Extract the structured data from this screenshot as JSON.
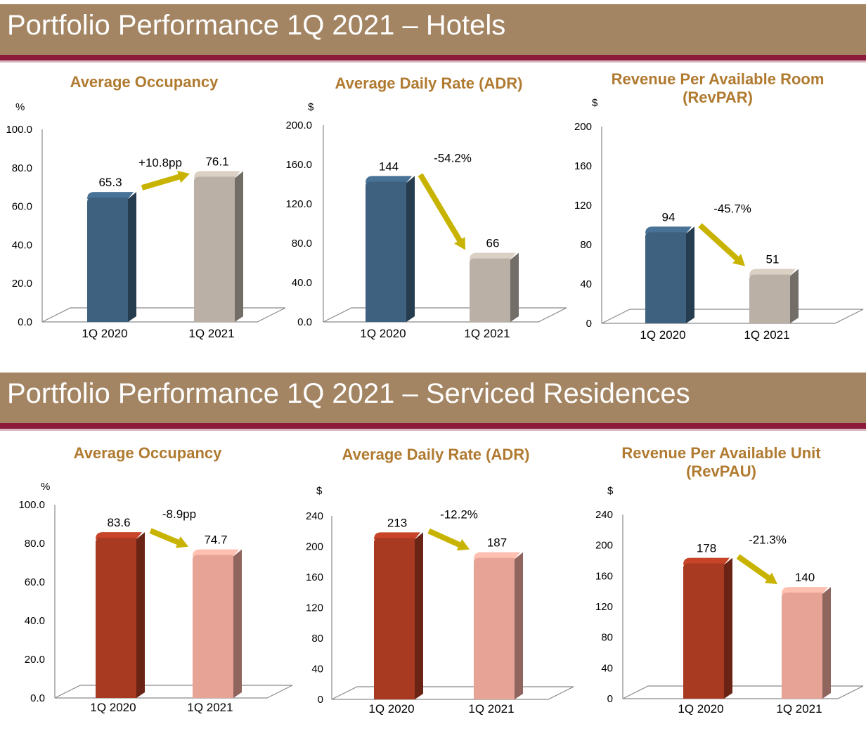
{
  "sections": {
    "hotels_title": "Portfolio Performance 1Q 2021 – Hotels",
    "sr_title": "Portfolio Performance 1Q 2021 – Serviced Residences"
  },
  "colors": {
    "banner": "#a48563",
    "banner_rule": "#8c1a3a",
    "title_text": "#b07a30",
    "hotel_2020": "#3e6180",
    "hotel_2021": "#bab0a6",
    "sr_2020": "#a93a22",
    "sr_2021": "#e8a397",
    "arrow": "#c8b400"
  },
  "chart_data": [
    {
      "type": "bar",
      "title_lines": [
        "Average Occupancy"
      ],
      "unit": "%",
      "categories": [
        "1Q 2020",
        "1Q 2021"
      ],
      "values": [
        65.3,
        76.1
      ],
      "value_labels": [
        "65.3",
        "76.1"
      ],
      "ylim": [
        0,
        100
      ],
      "yticks": [
        "0.0",
        "20.0",
        "40.0",
        "60.0",
        "80.0",
        "100.0"
      ],
      "change_label": "+10.8pp",
      "change_direction": "up",
      "colors": [
        "#3e6180",
        "#bab0a6"
      ]
    },
    {
      "type": "bar",
      "title_lines": [
        "Average Daily Rate (ADR)"
      ],
      "unit": "$",
      "categories": [
        "1Q 2020",
        "1Q 2021"
      ],
      "values": [
        144,
        66
      ],
      "value_labels": [
        "144",
        "66"
      ],
      "ylim": [
        0,
        200
      ],
      "yticks": [
        "0.0",
        "40.0",
        "80.0",
        "120.0",
        "160.0",
        "200.0"
      ],
      "change_label": "-54.2%",
      "change_direction": "down",
      "colors": [
        "#3e6180",
        "#bab0a6"
      ]
    },
    {
      "type": "bar",
      "title_lines": [
        "Revenue Per Available Room",
        "(RevPAR)"
      ],
      "unit": "$",
      "categories": [
        "1Q 2020",
        "1Q 2021"
      ],
      "values": [
        94,
        51
      ],
      "value_labels": [
        "94",
        "51"
      ],
      "ylim": [
        0,
        200
      ],
      "yticks": [
        "0",
        "40",
        "80",
        "120",
        "160",
        "200"
      ],
      "change_label": "-45.7%",
      "change_direction": "down",
      "colors": [
        "#3e6180",
        "#bab0a6"
      ]
    },
    {
      "type": "bar",
      "title_lines": [
        "Average Occupancy"
      ],
      "unit": "%",
      "categories": [
        "1Q 2020",
        "1Q 2021"
      ],
      "values": [
        83.6,
        74.7
      ],
      "value_labels": [
        "83.6",
        "74.7"
      ],
      "ylim": [
        0,
        100
      ],
      "yticks": [
        "0.0",
        "20.0",
        "40.0",
        "60.0",
        "80.0",
        "100.0"
      ],
      "change_label": "-8.9pp",
      "change_direction": "down",
      "colors": [
        "#a93a22",
        "#e8a397"
      ]
    },
    {
      "type": "bar",
      "title_lines": [
        "Average Daily Rate (ADR)"
      ],
      "unit": "$",
      "categories": [
        "1Q 2020",
        "1Q 2021"
      ],
      "values": [
        213,
        187
      ],
      "value_labels": [
        "213",
        "187"
      ],
      "ylim": [
        0,
        240
      ],
      "yticks": [
        "0",
        "40",
        "80",
        "120",
        "160",
        "200",
        "240"
      ],
      "change_label": "-12.2%",
      "change_direction": "down",
      "colors": [
        "#a93a22",
        "#e8a397"
      ]
    },
    {
      "type": "bar",
      "title_lines": [
        "Revenue Per Available Unit",
        "(RevPAU)"
      ],
      "unit": "$",
      "categories": [
        "1Q 2020",
        "1Q 2021"
      ],
      "values": [
        178,
        140
      ],
      "value_labels": [
        "178",
        "140"
      ],
      "ylim": [
        0,
        240
      ],
      "yticks": [
        "0",
        "40",
        "80",
        "120",
        "160",
        "200",
        "240"
      ],
      "change_label": "-21.3%",
      "change_direction": "down",
      "colors": [
        "#a93a22",
        "#e8a397"
      ]
    }
  ]
}
